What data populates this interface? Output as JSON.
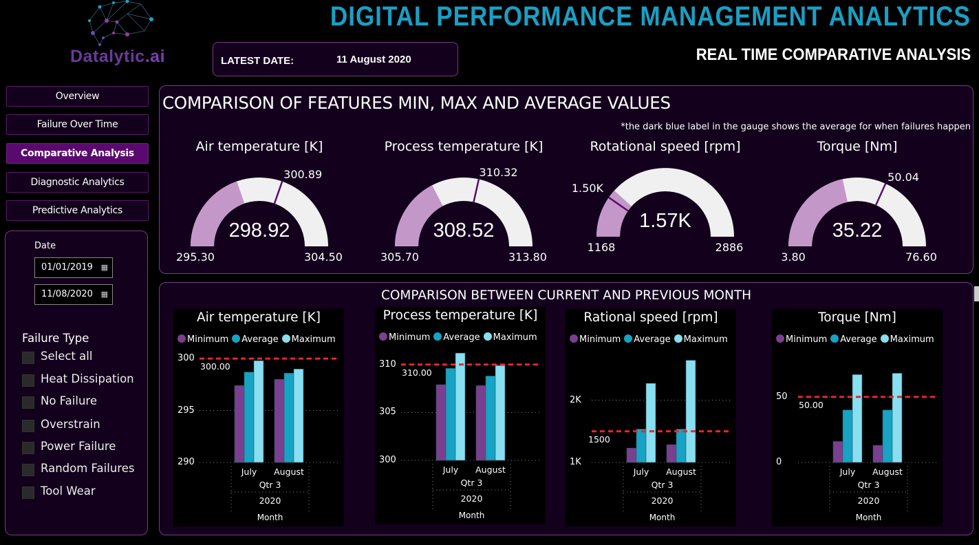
{
  "header": {
    "logo_text": "Datalytic",
    "logo_suffix": ".ai",
    "title": "DIGITAL PERFORMANCE MANAGEMENT ANALYTICS",
    "subtitle": "REAL TIME COMPARATIVE ANALYSIS",
    "latest_date_label": "LATEST DATE:",
    "latest_date_value": "11 August 2020"
  },
  "nav": [
    {
      "label": "Overview",
      "active": false
    },
    {
      "label": "Failure Over Time",
      "active": false
    },
    {
      "label": "Comparative Analysis",
      "active": true
    },
    {
      "label": "Diagnostic Analytics",
      "active": false
    },
    {
      "label": "Predictive Analytics",
      "active": false
    }
  ],
  "filters": {
    "date_label": "Date",
    "date_from": "01/01/2019",
    "date_to": "11/08/2020",
    "failure_type_label": "Failure Type",
    "failure_types": [
      "Select all",
      "Heat Dissipation",
      "No Failure",
      "Overstrain",
      "Power Failure",
      "Random Failures",
      "Tool Wear"
    ]
  },
  "gauges_section": {
    "title": "COMPARISON OF FEATURES MIN, MAX AND AVERAGE VALUES",
    "note": "*the dark blue label in the gauge shows the average for when failures happen",
    "gauges": [
      {
        "title": "Air temperature [K]",
        "min": 295.3,
        "max": 304.5,
        "value": 298.92,
        "target": 300.89,
        "min_label": "295.30",
        "max_label": "304.50",
        "value_label": "298.92",
        "target_label": "300.89"
      },
      {
        "title": "Process temperature [K]",
        "min": 305.7,
        "max": 313.8,
        "value": 308.52,
        "target": 310.32,
        "min_label": "305.70",
        "max_label": "313.80",
        "value_label": "308.52",
        "target_label": "310.32"
      },
      {
        "title": "Rotational speed [rpm]",
        "min": 1168,
        "max": 2886,
        "value": 1570,
        "target": 1500,
        "min_label": "1168",
        "max_label": "2886",
        "value_label": "1.57K",
        "target_label": "1.50K"
      },
      {
        "title": "Torque [Nm]",
        "min": 3.8,
        "max": 76.6,
        "value": 35.22,
        "target": 50.04,
        "min_label": "3.80",
        "max_label": "76.60",
        "value_label": "35.22",
        "target_label": "50.04"
      }
    ],
    "colors": {
      "fill": "#c497c9",
      "track": "#f0f0f0",
      "target": "#5a0a6e"
    }
  },
  "chart_data": [
    {
      "type": "bar",
      "title": "Air temperature [K]",
      "categories": [
        "July",
        "August"
      ],
      "group_label": "Qtr 3",
      "year_label": "2020",
      "xlabel": "Month",
      "series": [
        {
          "name": "Minimum",
          "values": [
            297.4,
            298.0
          ]
        },
        {
          "name": "Average",
          "values": [
            298.7,
            298.6
          ]
        },
        {
          "name": "Maximum",
          "values": [
            299.8,
            299.0
          ]
        }
      ],
      "yticks": [
        290,
        295,
        300
      ],
      "ytick_labels": [
        "290",
        "295",
        "300"
      ],
      "ylim": [
        290,
        302
      ],
      "reference": 300,
      "reference_label": "300.00"
    },
    {
      "type": "bar",
      "title": "Process temperature [K]",
      "categories": [
        "July",
        "August"
      ],
      "group_label": "Qtr 3",
      "year_label": "2020",
      "xlabel": "Month",
      "series": [
        {
          "name": "Minimum",
          "values": [
            307.9,
            307.8
          ]
        },
        {
          "name": "Average",
          "values": [
            309.6,
            308.8
          ]
        },
        {
          "name": "Maximum",
          "values": [
            311.2,
            309.9
          ]
        }
      ],
      "yticks": [
        300,
        305,
        310
      ],
      "ytick_labels": [
        "300",
        "305",
        "310"
      ],
      "ylim": [
        300,
        313
      ],
      "reference": 310,
      "reference_label": "310.00"
    },
    {
      "type": "bar",
      "title": "Rational speed [rpm]",
      "categories": [
        "July",
        "August"
      ],
      "group_label": "Qtr 3",
      "year_label": "2020",
      "xlabel": "Month",
      "series": [
        {
          "name": "Minimum",
          "values": [
            1230,
            1285
          ]
        },
        {
          "name": "Average",
          "values": [
            1535,
            1535
          ]
        },
        {
          "name": "Maximum",
          "values": [
            2270,
            2640
          ]
        }
      ],
      "yticks": [
        1000,
        2000
      ],
      "ytick_labels": [
        "1K",
        "2K"
      ],
      "ylim": [
        1000,
        3000
      ],
      "reference": 1500,
      "reference_label": "1500"
    },
    {
      "type": "bar",
      "title": "Torque [Nm]",
      "categories": [
        "July",
        "August"
      ],
      "group_label": "Qtr 3",
      "year_label": "2020",
      "xlabel": "Month",
      "series": [
        {
          "name": "Minimum",
          "values": [
            16,
            13
          ]
        },
        {
          "name": "Average",
          "values": [
            40,
            40
          ]
        },
        {
          "name": "Maximum",
          "values": [
            67,
            68
          ]
        }
      ],
      "yticks": [
        0,
        50
      ],
      "ytick_labels": [
        "0",
        "50"
      ],
      "ylim": [
        0,
        95
      ],
      "reference": 50,
      "reference_label": "50.00"
    }
  ],
  "comparison_section": {
    "title": "COMPARISON BETWEEN CURRENT AND PREVIOUS MONTH"
  },
  "series_colors": {
    "Minimum": "#7b3f8f",
    "Average": "#17a3c3",
    "Maximum": "#88dff0",
    "reference": "#e8262b"
  }
}
